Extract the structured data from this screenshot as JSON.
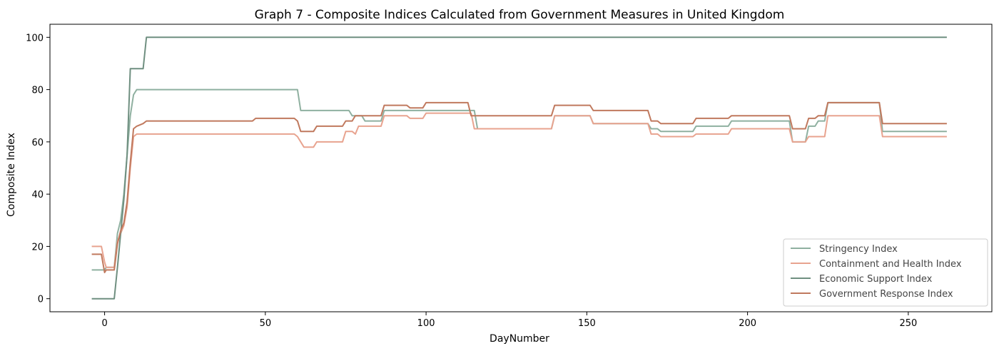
{
  "chart_data": {
    "type": "line",
    "title": "Graph 7 - Composite Indices Calculated from Government Measures in United Kingdom",
    "xlabel": "DayNumber",
    "ylabel": "Composite Index",
    "xlim": [
      -17,
      276
    ],
    "ylim": [
      -5,
      105
    ],
    "xticks": [
      0,
      50,
      100,
      150,
      200,
      250
    ],
    "yticks": [
      0,
      20,
      40,
      60,
      80,
      100
    ],
    "grid": false,
    "legend_position": "lower-right",
    "series": [
      {
        "name": "Stringency Index",
        "color": "#8fb0a0",
        "points": [
          [
            -4,
            11
          ],
          [
            0,
            11
          ],
          [
            0.5,
            12
          ],
          [
            3,
            12
          ],
          [
            4,
            25
          ],
          [
            5,
            30
          ],
          [
            6,
            40
          ],
          [
            7,
            55
          ],
          [
            8,
            70
          ],
          [
            9,
            78
          ],
          [
            10,
            80
          ],
          [
            60,
            80
          ],
          [
            61,
            72
          ],
          [
            76,
            72
          ],
          [
            77,
            70
          ],
          [
            80,
            70
          ],
          [
            81,
            68
          ],
          [
            86,
            68
          ],
          [
            87,
            72
          ],
          [
            115,
            72
          ],
          [
            116,
            65
          ],
          [
            139,
            65
          ],
          [
            140,
            70
          ],
          [
            151,
            70
          ],
          [
            152,
            67
          ],
          [
            169,
            67
          ],
          [
            170,
            65
          ],
          [
            172,
            65
          ],
          [
            173,
            64
          ],
          [
            183,
            64
          ],
          [
            184,
            66
          ],
          [
            194,
            66
          ],
          [
            195,
            68
          ],
          [
            213,
            68
          ],
          [
            214,
            60
          ],
          [
            218,
            60
          ],
          [
            219,
            66
          ],
          [
            221,
            66
          ],
          [
            222,
            68
          ],
          [
            224,
            68
          ],
          [
            225,
            75
          ],
          [
            241,
            75
          ],
          [
            242,
            64
          ],
          [
            262,
            64
          ]
        ]
      },
      {
        "name": "Containment and Health Index",
        "color": "#e8a38f",
        "points": [
          [
            -4,
            20
          ],
          [
            -1,
            20
          ],
          [
            0,
            14
          ],
          [
            0.5,
            12
          ],
          [
            3,
            12
          ],
          [
            4,
            22
          ],
          [
            5,
            25
          ],
          [
            6,
            28
          ],
          [
            7,
            35
          ],
          [
            8,
            50
          ],
          [
            9,
            62
          ],
          [
            10,
            63
          ],
          [
            59,
            63
          ],
          [
            60,
            62
          ],
          [
            62,
            58
          ],
          [
            65,
            58
          ],
          [
            66,
            60
          ],
          [
            74,
            60
          ],
          [
            75,
            64
          ],
          [
            77,
            64
          ],
          [
            78,
            63
          ],
          [
            79,
            66
          ],
          [
            86,
            66
          ],
          [
            87,
            70
          ],
          [
            94,
            70
          ],
          [
            95,
            69
          ],
          [
            99,
            69
          ],
          [
            100,
            71
          ],
          [
            114,
            71
          ],
          [
            115,
            65
          ],
          [
            139,
            65
          ],
          [
            140,
            70
          ],
          [
            151,
            70
          ],
          [
            152,
            67
          ],
          [
            169,
            67
          ],
          [
            170,
            63
          ],
          [
            172,
            63
          ],
          [
            173,
            62
          ],
          [
            183,
            62
          ],
          [
            184,
            63
          ],
          [
            194,
            63
          ],
          [
            195,
            65
          ],
          [
            213,
            65
          ],
          [
            214,
            60
          ],
          [
            218,
            60
          ],
          [
            219,
            62
          ],
          [
            224,
            62
          ],
          [
            225,
            70
          ],
          [
            241,
            70
          ],
          [
            242,
            62
          ],
          [
            262,
            62
          ]
        ]
      },
      {
        "name": "Economic Support Index",
        "color": "#6f8f80",
        "points": [
          [
            -4,
            0
          ],
          [
            3,
            0
          ],
          [
            4,
            12
          ],
          [
            5,
            25
          ],
          [
            6,
            38
          ],
          [
            7,
            55
          ],
          [
            8,
            88
          ],
          [
            12,
            88
          ],
          [
            13,
            100
          ],
          [
            262,
            100
          ]
        ]
      },
      {
        "name": "Government Response Index",
        "color": "#c0795e",
        "points": [
          [
            -4,
            17
          ],
          [
            -1,
            17
          ],
          [
            0,
            10
          ],
          [
            0.5,
            11
          ],
          [
            3,
            11
          ],
          [
            4,
            21
          ],
          [
            5,
            26
          ],
          [
            6,
            29
          ],
          [
            7,
            37
          ],
          [
            8,
            52
          ],
          [
            9,
            65
          ],
          [
            10,
            66
          ],
          [
            12,
            67
          ],
          [
            13,
            68
          ],
          [
            46,
            68
          ],
          [
            47,
            69
          ],
          [
            59,
            69
          ],
          [
            60,
            68
          ],
          [
            61,
            64
          ],
          [
            65,
            64
          ],
          [
            66,
            66
          ],
          [
            74,
            66
          ],
          [
            75,
            68
          ],
          [
            77,
            68
          ],
          [
            78,
            70
          ],
          [
            86,
            70
          ],
          [
            87,
            74
          ],
          [
            94,
            74
          ],
          [
            95,
            73
          ],
          [
            99,
            73
          ],
          [
            100,
            75
          ],
          [
            113,
            75
          ],
          [
            114,
            70
          ],
          [
            139,
            70
          ],
          [
            140,
            74
          ],
          [
            151,
            74
          ],
          [
            152,
            72
          ],
          [
            169,
            72
          ],
          [
            170,
            68
          ],
          [
            172,
            68
          ],
          [
            173,
            67
          ],
          [
            183,
            67
          ],
          [
            184,
            69
          ],
          [
            194,
            69
          ],
          [
            195,
            70
          ],
          [
            213,
            70
          ],
          [
            214,
            65
          ],
          [
            218,
            65
          ],
          [
            219,
            69
          ],
          [
            221,
            69
          ],
          [
            222,
            70
          ],
          [
            224,
            70
          ],
          [
            225,
            75
          ],
          [
            241,
            75
          ],
          [
            242,
            67
          ],
          [
            262,
            67
          ]
        ]
      }
    ]
  }
}
